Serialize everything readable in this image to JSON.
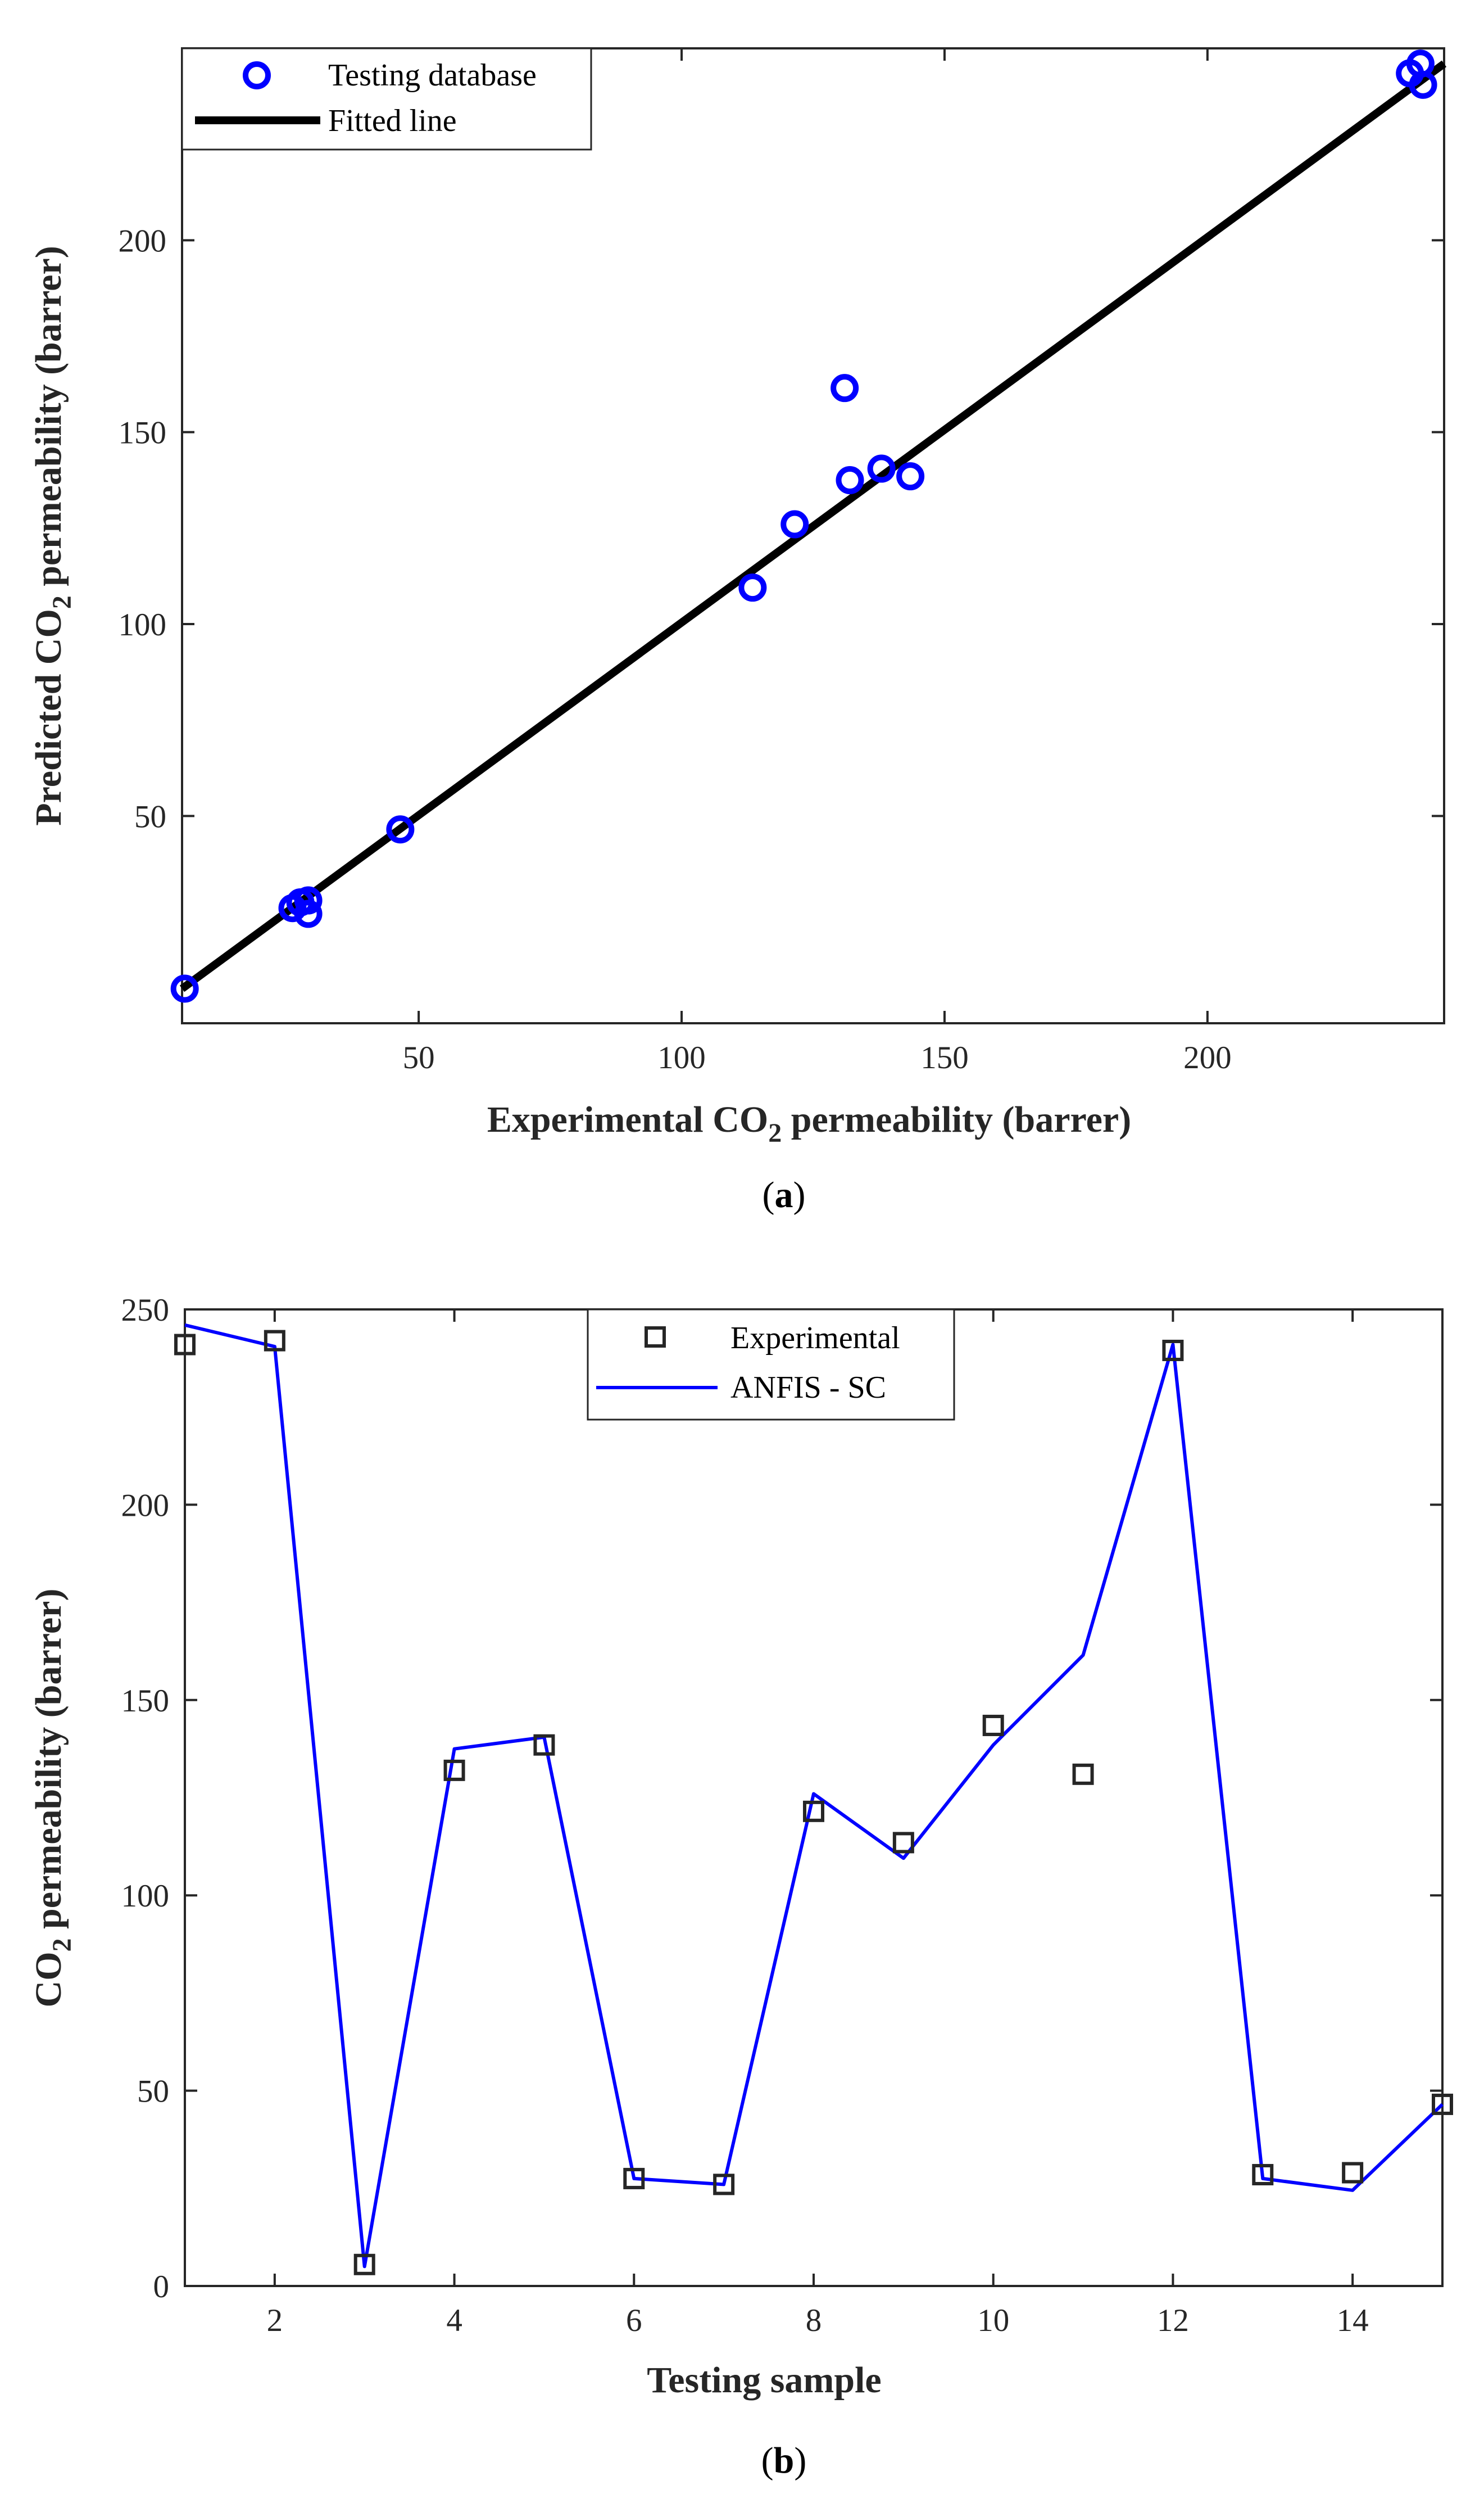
{
  "chart_data": [
    {
      "panel": "a",
      "type": "scatter",
      "panel_label": {
        "open": "(",
        "letter": "a",
        "close": ")"
      },
      "xlabel": {
        "pre": "Experimental CO",
        "sub": "2",
        "post": " permeability (barrer)"
      },
      "ylabel": {
        "pre": "Predicted CO",
        "sub": "2",
        "post": " permeability (barrer)"
      },
      "xlim": [
        5,
        245
      ],
      "ylim": [
        -4,
        250
      ],
      "xticks": [
        50,
        100,
        150,
        200
      ],
      "yticks": [
        50,
        100,
        150,
        200
      ],
      "legend_position": "top-left",
      "grid": false,
      "series": [
        {
          "name": "Testing database",
          "kind": "markers",
          "marker": "circle",
          "color": "#0000ff",
          "points": [
            {
              "x": 5.5,
              "y": 5.0
            },
            {
              "x": 26.0,
              "y": 26.0
            },
            {
              "x": 27.5,
              "y": 27.5
            },
            {
              "x": 29.0,
              "y": 28.0
            },
            {
              "x": 29.0,
              "y": 24.5
            },
            {
              "x": 46.5,
              "y": 46.5
            },
            {
              "x": 113.5,
              "y": 109.5
            },
            {
              "x": 121.5,
              "y": 126.0
            },
            {
              "x": 131.0,
              "y": 161.5
            },
            {
              "x": 132.0,
              "y": 137.5
            },
            {
              "x": 138.0,
              "y": 140.5
            },
            {
              "x": 143.5,
              "y": 138.5
            },
            {
              "x": 238.5,
              "y": 243.5
            },
            {
              "x": 240.5,
              "y": 246.0
            },
            {
              "x": 241.0,
              "y": 240.5
            }
          ]
        },
        {
          "name": "Fitted line",
          "kind": "line",
          "color": "#000000",
          "points": [
            {
              "x": 5.0,
              "y": 5.0
            },
            {
              "x": 245.0,
              "y": 246.0
            }
          ]
        }
      ]
    },
    {
      "panel": "b",
      "type": "line",
      "panel_label": {
        "open": "(",
        "letter": "b",
        "close": ")"
      },
      "xlabel": {
        "pre": "Testing sample",
        "sub": "",
        "post": ""
      },
      "ylabel": {
        "pre": "CO",
        "sub": "2",
        "post": " permeability (barrer)"
      },
      "xlim": [
        1,
        15
      ],
      "ylim": [
        0,
        250
      ],
      "xticks": [
        2,
        4,
        6,
        8,
        10,
        12,
        14
      ],
      "yticks": [
        0,
        50,
        100,
        150,
        200,
        250
      ],
      "legend_position": "top-center",
      "grid": false,
      "categories": [
        1,
        2,
        3,
        4,
        5,
        6,
        7,
        8,
        9,
        10,
        11,
        12,
        13,
        14,
        15
      ],
      "series": [
        {
          "name": "Experimental",
          "kind": "markers",
          "marker": "square",
          "color": "#262626",
          "values": [
            241,
            242,
            5.5,
            132,
            138.5,
            27.5,
            26,
            121.5,
            113.5,
            143.5,
            131,
            239.5,
            28.5,
            29,
            46.5
          ]
        },
        {
          "name": "ANFIS - SC",
          "kind": "line",
          "color": "#0000ff",
          "values": [
            246,
            240.5,
            5,
            137.5,
            140.5,
            27.5,
            26,
            126,
            109.5,
            138.5,
            161.5,
            241,
            27.5,
            24.5,
            46.5
          ]
        }
      ]
    }
  ]
}
